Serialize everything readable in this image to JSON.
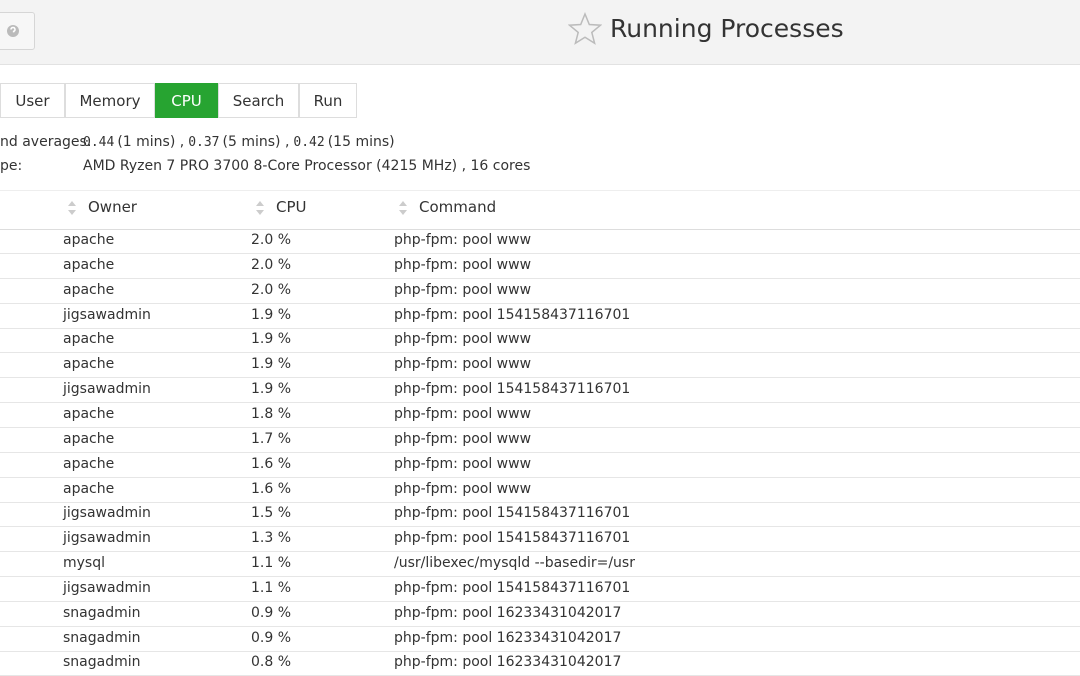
{
  "header": {
    "title": "Running Processes"
  },
  "tabs": [
    {
      "label": "User"
    },
    {
      "label": "Memory"
    },
    {
      "label": "CPU",
      "active": true
    },
    {
      "label": "Search"
    },
    {
      "label": "Run"
    }
  ],
  "info": {
    "load_label": "nd averages:",
    "load_averages": [
      {
        "value": "0.44",
        "period": "(1 mins) ,"
      },
      {
        "value": "0.37",
        "period": "(5 mins) ,"
      },
      {
        "value": "0.42",
        "period": "(15 mins)"
      }
    ],
    "cpu_label": "pe:",
    "cpu_type": "AMD Ryzen 7 PRO 3700 8-Core Processor (4215 MHz) , 16 cores"
  },
  "table": {
    "headers": [
      "Owner",
      "CPU",
      "Command"
    ],
    "rows": [
      [
        "apache",
        "2.0 %",
        "php-fpm: pool www"
      ],
      [
        "apache",
        "2.0 %",
        "php-fpm: pool www"
      ],
      [
        "apache",
        "2.0 %",
        "php-fpm: pool www"
      ],
      [
        "jigsawadmin",
        "1.9 %",
        "php-fpm: pool 154158437116701"
      ],
      [
        "apache",
        "1.9 %",
        "php-fpm: pool www"
      ],
      [
        "apache",
        "1.9 %",
        "php-fpm: pool www"
      ],
      [
        "jigsawadmin",
        "1.9 %",
        "php-fpm: pool 154158437116701"
      ],
      [
        "apache",
        "1.8 %",
        "php-fpm: pool www"
      ],
      [
        "apache",
        "1.7 %",
        "php-fpm: pool www"
      ],
      [
        "apache",
        "1.6 %",
        "php-fpm: pool www"
      ],
      [
        "apache",
        "1.6 %",
        "php-fpm: pool www"
      ],
      [
        "jigsawadmin",
        "1.5 %",
        "php-fpm: pool 154158437116701"
      ],
      [
        "jigsawadmin",
        "1.3 %",
        "php-fpm: pool 154158437116701"
      ],
      [
        "mysql",
        "1.1 %",
        "/usr/libexec/mysqld --basedir=/usr"
      ],
      [
        "jigsawadmin",
        "1.1 %",
        "php-fpm: pool 154158437116701"
      ],
      [
        "snagadmin",
        "0.9 %",
        "php-fpm: pool 16233431042017"
      ],
      [
        "snagadmin",
        "0.9 %",
        "php-fpm: pool 16233431042017"
      ],
      [
        "snagadmin",
        "0.8 %",
        "php-fpm: pool 16233431042017"
      ]
    ]
  }
}
